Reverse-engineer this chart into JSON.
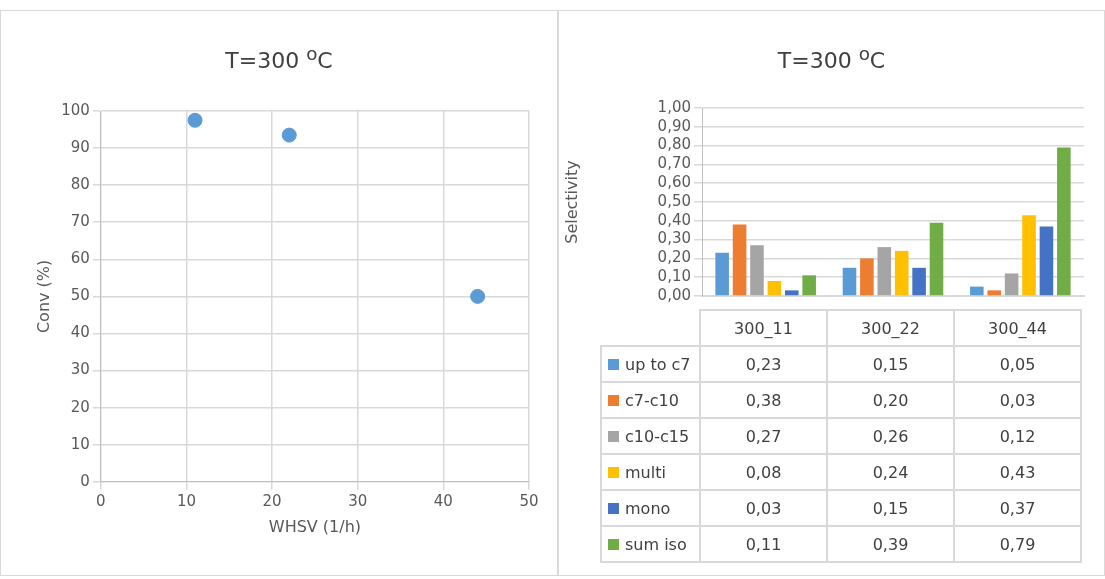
{
  "chart_data": [
    {
      "type": "scatter",
      "title": "T=300 $^{o}$C",
      "xlabel": "WHSV (1/h)",
      "ylabel": "Conv (%)",
      "x": [
        11,
        22,
        44
      ],
      "series": [
        {
          "color": "#5b9bd5",
          "values": [
            97.5,
            93.5,
            50
          ]
        }
      ],
      "xlim": [
        0,
        50
      ],
      "xticks": [
        0,
        10,
        20,
        30,
        40,
        50
      ],
      "ylim": [
        0,
        100
      ],
      "yticks": [
        0,
        10,
        20,
        30,
        40,
        50,
        60,
        70,
        80,
        90,
        100
      ],
      "grid": true,
      "marker": "circle"
    },
    {
      "type": "bar",
      "title": "T=300 $^{o}$C",
      "ylabel": "Selectivity",
      "categories": [
        "300_11",
        "300_22",
        "300_44"
      ],
      "series": [
        {
          "name": "up to c7",
          "color": "#5b9bd5",
          "values": [
            0.23,
            0.15,
            0.05
          ],
          "value_labels": [
            "0,23",
            "0,15",
            "0,05"
          ]
        },
        {
          "name": "c7-c10",
          "color": "#ed7d31",
          "values": [
            0.38,
            0.2,
            0.03
          ],
          "value_labels": [
            "0,38",
            "0,20",
            "0,03"
          ]
        },
        {
          "name": "c10-c15",
          "color": "#a5a5a5",
          "values": [
            0.27,
            0.26,
            0.12
          ],
          "value_labels": [
            "0,27",
            "0,26",
            "0,12"
          ]
        },
        {
          "name": "multi",
          "color": "#ffc000",
          "values": [
            0.08,
            0.24,
            0.43
          ],
          "value_labels": [
            "0,08",
            "0,24",
            "0,43"
          ]
        },
        {
          "name": "mono",
          "color": "#4472c4",
          "values": [
            0.03,
            0.15,
            0.37
          ],
          "value_labels": [
            "0,03",
            "0,15",
            "0,37"
          ]
        },
        {
          "name": "sum iso",
          "color": "#70ad47",
          "values": [
            0.11,
            0.39,
            0.79
          ],
          "value_labels": [
            "0,11",
            "0,39",
            "0,79"
          ]
        }
      ],
      "ylim": [
        0,
        1
      ],
      "yticks": [
        {
          "value": 0,
          "label": "0,00"
        },
        {
          "value": 0.1,
          "label": "0,10"
        },
        {
          "value": 0.2,
          "label": "0,20"
        },
        {
          "value": 0.3,
          "label": "0,30"
        },
        {
          "value": 0.4,
          "label": "0,40"
        },
        {
          "value": 0.5,
          "label": "0,50"
        },
        {
          "value": 0.6,
          "label": "0,60"
        },
        {
          "value": 0.7,
          "label": "0,70"
        },
        {
          "value": 0.8,
          "label": "0,80"
        },
        {
          "value": 0.9,
          "label": "0,90"
        },
        {
          "value": 1,
          "label": "1,00"
        }
      ],
      "grid": "y",
      "legend": "bottom"
    }
  ]
}
